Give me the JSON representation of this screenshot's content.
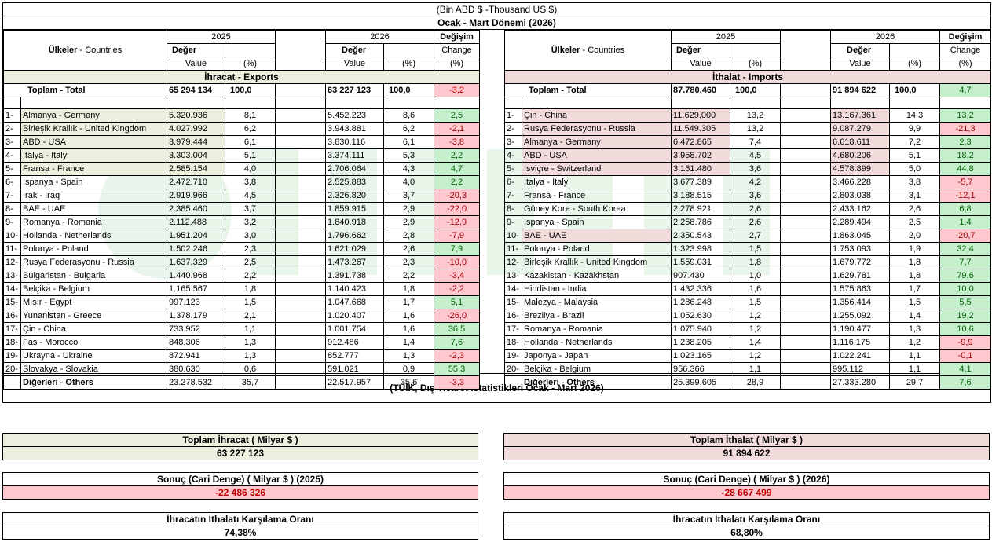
{
  "header": {
    "unit": "(Bin ABD $ -Thousand US $)",
    "period": "Ocak - Mart Dönemi (2026)"
  },
  "columns": {
    "countries_tr": "Ülkeler",
    "countries_en": "- Countries",
    "year1": "2025",
    "year2": "2026",
    "value_tr": "Değer",
    "value_en": "Value",
    "pct": "(%)",
    "change_tr": "Değişim",
    "change_en": "Change",
    "change_pct": "(%)"
  },
  "exports": {
    "section": "İhracat - Exports",
    "total_label": "Toplam - Total",
    "total": {
      "v25": "65 294 134",
      "p25": "100,0",
      "v26": "63 227 123",
      "p26": "100,0",
      "chg": "-3,2"
    },
    "rows": [
      {
        "idx": "1-",
        "name": "Almanya - Germany",
        "v25": "5.320.936",
        "p25": "8,1",
        "v26": "5.452.223",
        "p26": "8,6",
        "chg": "2,5",
        "pos": true
      },
      {
        "idx": "2-",
        "name": "Birleşik Krallık - United Kingdom",
        "v25": "4.027.992",
        "p25": "6,2",
        "v26": "3.943.881",
        "p26": "6,2",
        "chg": "-2,1",
        "pos": false
      },
      {
        "idx": "3-",
        "name": "ABD - USA",
        "v25": "3.979.444",
        "p25": "6,1",
        "v26": "3.830.116",
        "p26": "6,1",
        "chg": "-3,8",
        "pos": false
      },
      {
        "idx": "4-",
        "name": "İtalya - Italy",
        "v25": "3.303.004",
        "p25": "5,1",
        "v26": "3.374.111",
        "p26": "5,3",
        "chg": "2,2",
        "pos": true
      },
      {
        "idx": "5-",
        "name": "Fransa - France",
        "v25": "2.585.154",
        "p25": "4,0",
        "v26": "2.706.064",
        "p26": "4,3",
        "chg": "4,7",
        "pos": true
      },
      {
        "idx": "6-",
        "name": "İspanya - Spain",
        "v25": "2.472.710",
        "p25": "3,8",
        "v26": "2.525.883",
        "p26": "4,0",
        "chg": "2,2",
        "pos": true
      },
      {
        "idx": "7-",
        "name": "Irak - Iraq",
        "v25": "2.919.966",
        "p25": "4,5",
        "v26": "2.326.820",
        "p26": "3,7",
        "chg": "-20,3",
        "pos": false
      },
      {
        "idx": "8-",
        "name": "BAE - UAE",
        "v25": "2.385.460",
        "p25": "3,7",
        "v26": "1.859.915",
        "p26": "2,9",
        "chg": "-22,0",
        "pos": false
      },
      {
        "idx": "9-",
        "name": "Romanya - Romania",
        "v25": "2.112.488",
        "p25": "3,2",
        "v26": "1.840.918",
        "p26": "2,9",
        "chg": "-12,9",
        "pos": false
      },
      {
        "idx": "10-",
        "name": "Hollanda - Netherlands",
        "v25": "1.951.204",
        "p25": "3,0",
        "v26": "1.796.662",
        "p26": "2,8",
        "chg": "-7,9",
        "pos": false
      },
      {
        "idx": "11-",
        "name": "Polonya - Poland",
        "v25": "1.502.246",
        "p25": "2,3",
        "v26": "1.621.029",
        "p26": "2,6",
        "chg": "7,9",
        "pos": true
      },
      {
        "idx": "12-",
        "name": "Rusya Federasyonu - Russia",
        "v25": "1.637.329",
        "p25": "2,5",
        "v26": "1.473.267",
        "p26": "2,3",
        "chg": "-10,0",
        "pos": false
      },
      {
        "idx": "13-",
        "name": "Bulgaristan - Bulgaria",
        "v25": "1.440.968",
        "p25": "2,2",
        "v26": "1.391.738",
        "p26": "2,2",
        "chg": "-3,4",
        "pos": false
      },
      {
        "idx": "14-",
        "name": "Belçika - Belgium",
        "v25": "1.165.567",
        "p25": "1,8",
        "v26": "1.140.423",
        "p26": "1,8",
        "chg": "-2,2",
        "pos": false
      },
      {
        "idx": "15-",
        "name": "Mısır - Egypt",
        "v25": "997.123",
        "p25": "1,5",
        "v26": "1.047.668",
        "p26": "1,7",
        "chg": "5,1",
        "pos": true
      },
      {
        "idx": "16-",
        "name": "Yunanistan - Greece",
        "v25": "1.378.179",
        "p25": "2,1",
        "v26": "1.020.407",
        "p26": "1,6",
        "chg": "-26,0",
        "pos": false
      },
      {
        "idx": "17-",
        "name": "Çin - China",
        "v25": "733.952",
        "p25": "1,1",
        "v26": "1.001.754",
        "p26": "1,6",
        "chg": "36,5",
        "pos": true
      },
      {
        "idx": "18-",
        "name": "Fas - Morocco",
        "v25": "848.306",
        "p25": "1,3",
        "v26": "912.486",
        "p26": "1,4",
        "chg": "7,6",
        "pos": true
      },
      {
        "idx": "19-",
        "name": "Ukrayna - Ukraine",
        "v25": "872.941",
        "p25": "1,3",
        "v26": "852.777",
        "p26": "1,3",
        "chg": "-2,3",
        "pos": false
      },
      {
        "idx": "20-",
        "name": "Slovakya - Slovakia",
        "v25": "380.630",
        "p25": "0,6",
        "v26": "591.021",
        "p26": "0,9",
        "chg": "55,3",
        "pos": true
      }
    ],
    "others": {
      "name": "Diğerleri - Others",
      "v25": "23.278.532",
      "p25": "35,7",
      "v26": "22.517.957",
      "p26": "35,6",
      "chg": "-3,3",
      "pos": false
    }
  },
  "imports": {
    "section": "İthalat - Imports",
    "total_label": "Toplam - Total",
    "total": {
      "v25": "87.780.460",
      "p25": "100,0",
      "v26": "91 894 622",
      "p26": "100,0",
      "chg": "4,7"
    },
    "rows": [
      {
        "idx": "1-",
        "name": "Çin - China",
        "v25": "11.629.000",
        "p25": "13,2",
        "v26": "13.167.361",
        "p26": "14,3",
        "chg": "13,2",
        "pos": true
      },
      {
        "idx": "2-",
        "name": "Rusya Federasyonu - Russia",
        "v25": "11.549.305",
        "p25": "13,2",
        "v26": "9.087.279",
        "p26": "9,9",
        "chg": "-21,3",
        "pos": false
      },
      {
        "idx": "3-",
        "name": "Almanya - Germany",
        "v25": "6.472.865",
        "p25": "7,4",
        "v26": "6.618.611",
        "p26": "7,2",
        "chg": "2,3",
        "pos": true
      },
      {
        "idx": "4-",
        "name": "ABD - USA",
        "v25": "3.958.702",
        "p25": "4,5",
        "v26": "4.680.206",
        "p26": "5,1",
        "chg": "18,2",
        "pos": true
      },
      {
        "idx": "5-",
        "name": "İsviçre - Switzerland",
        "v25": "3.161.480",
        "p25": "3,6",
        "v26": "4.578.899",
        "p26": "5,0",
        "chg": "44,8",
        "pos": true
      },
      {
        "idx": "6-",
        "name": "İtalya - Italy",
        "v25": "3.677.389",
        "p25": "4,2",
        "v26": "3.466.228",
        "p26": "3,8",
        "chg": "-5,7",
        "pos": false
      },
      {
        "idx": "7-",
        "name": "Fransa - France",
        "v25": "3.188.515",
        "p25": "3,6",
        "v26": "2.803.038",
        "p26": "3,1",
        "chg": "-12,1",
        "pos": false
      },
      {
        "idx": "8-",
        "name": "Güney Kore - South Korea",
        "v25": "2.278.921",
        "p25": "2,6",
        "v26": "2.433.162",
        "p26": "2,6",
        "chg": "6,8",
        "pos": true
      },
      {
        "idx": "9-",
        "name": "İspanya - Spain",
        "v25": "2.258.786",
        "p25": "2,6",
        "v26": "2.289.494",
        "p26": "2,5",
        "chg": "1,4",
        "pos": true
      },
      {
        "idx": "10-",
        "name": "BAE - UAE",
        "v25": "2.350.543",
        "p25": "2,7",
        "v26": "1.863.045",
        "p26": "2,0",
        "chg": "-20,7",
        "pos": false
      },
      {
        "idx": "11-",
        "name": "Polonya - Poland",
        "v25": "1.323.998",
        "p25": "1,5",
        "v26": "1.753.093",
        "p26": "1,9",
        "chg": "32,4",
        "pos": true
      },
      {
        "idx": "12-",
        "name": "Birleşik Krallık - United Kingdom",
        "v25": "1.559.031",
        "p25": "1,8",
        "v26": "1.679.772",
        "p26": "1,8",
        "chg": "7,7",
        "pos": true
      },
      {
        "idx": "13-",
        "name": "Kazakistan - Kazakhstan",
        "v25": "907.430",
        "p25": "1,0",
        "v26": "1.629.781",
        "p26": "1,8",
        "chg": "79,6",
        "pos": true
      },
      {
        "idx": "14-",
        "name": "Hindistan - India",
        "v25": "1.432.336",
        "p25": "1,6",
        "v26": "1.575.863",
        "p26": "1,7",
        "chg": "10,0",
        "pos": true
      },
      {
        "idx": "15-",
        "name": "Malezya - Malaysia",
        "v25": "1.286.248",
        "p25": "1,5",
        "v26": "1.356.414",
        "p26": "1,5",
        "chg": "5,5",
        "pos": true
      },
      {
        "idx": "16-",
        "name": "Brezilya - Brazil",
        "v25": "1.052.630",
        "p25": "1,2",
        "v26": "1.255.092",
        "p26": "1,4",
        "chg": "19,2",
        "pos": true
      },
      {
        "idx": "17-",
        "name": "Romanya - Romania",
        "v25": "1.075.940",
        "p25": "1,2",
        "v26": "1.190.477",
        "p26": "1,3",
        "chg": "10,6",
        "pos": true
      },
      {
        "idx": "18-",
        "name": "Hollanda - Netherlands",
        "v25": "1.238.205",
        "p25": "1,4",
        "v26": "1.116.175",
        "p26": "1,2",
        "chg": "-9,9",
        "pos": false
      },
      {
        "idx": "19-",
        "name": "Japonya - Japan",
        "v25": "1.023.165",
        "p25": "1,2",
        "v26": "1.022.241",
        "p26": "1,1",
        "chg": "-0,1",
        "pos": false
      },
      {
        "idx": "20-",
        "name": "Belçika - Belgium",
        "v25": "956.366",
        "p25": "1,1",
        "v26": "995.112",
        "p26": "1,1",
        "chg": "4,1",
        "pos": true
      }
    ],
    "others": {
      "name": "Diğerleri - Others",
      "v25": "25.399.605",
      "p25": "28,9",
      "v26": "27.333.280",
      "p26": "29,7",
      "chg": "7,6",
      "pos": true
    }
  },
  "source": "(TÜİK, Dış Ticaret İstatistikleri Ocak - Mart 2026)",
  "summary": {
    "exports_title": "Toplam İhracat ( Milyar $ )",
    "exports_value": "63 227 123",
    "imports_title": "Toplam İthalat ( Milyar $ )",
    "imports_value": "91 894 622",
    "balance_2025_title": "Sonuç (Cari Denge) ( Milyar $ ) (2025)",
    "balance_2025_value": "-22 486 326",
    "balance_2026_title": "Sonuç (Cari Denge) ( Milyar $ ) (2026)",
    "balance_2026_value": "-28 667 499",
    "coverage_title_left": "İhracatın İthalatı Karşılama Oranı",
    "coverage_value_left": "74,38%",
    "coverage_title_right": "İhracatın İthalatı Karşılama Oranı",
    "coverage_value_right": "68,80%"
  },
  "colors": {
    "exports_section": "#ebf1de",
    "imports_section": "#f2dcdb",
    "positive": "#c6efce",
    "negative": "#ffc7ce"
  }
}
